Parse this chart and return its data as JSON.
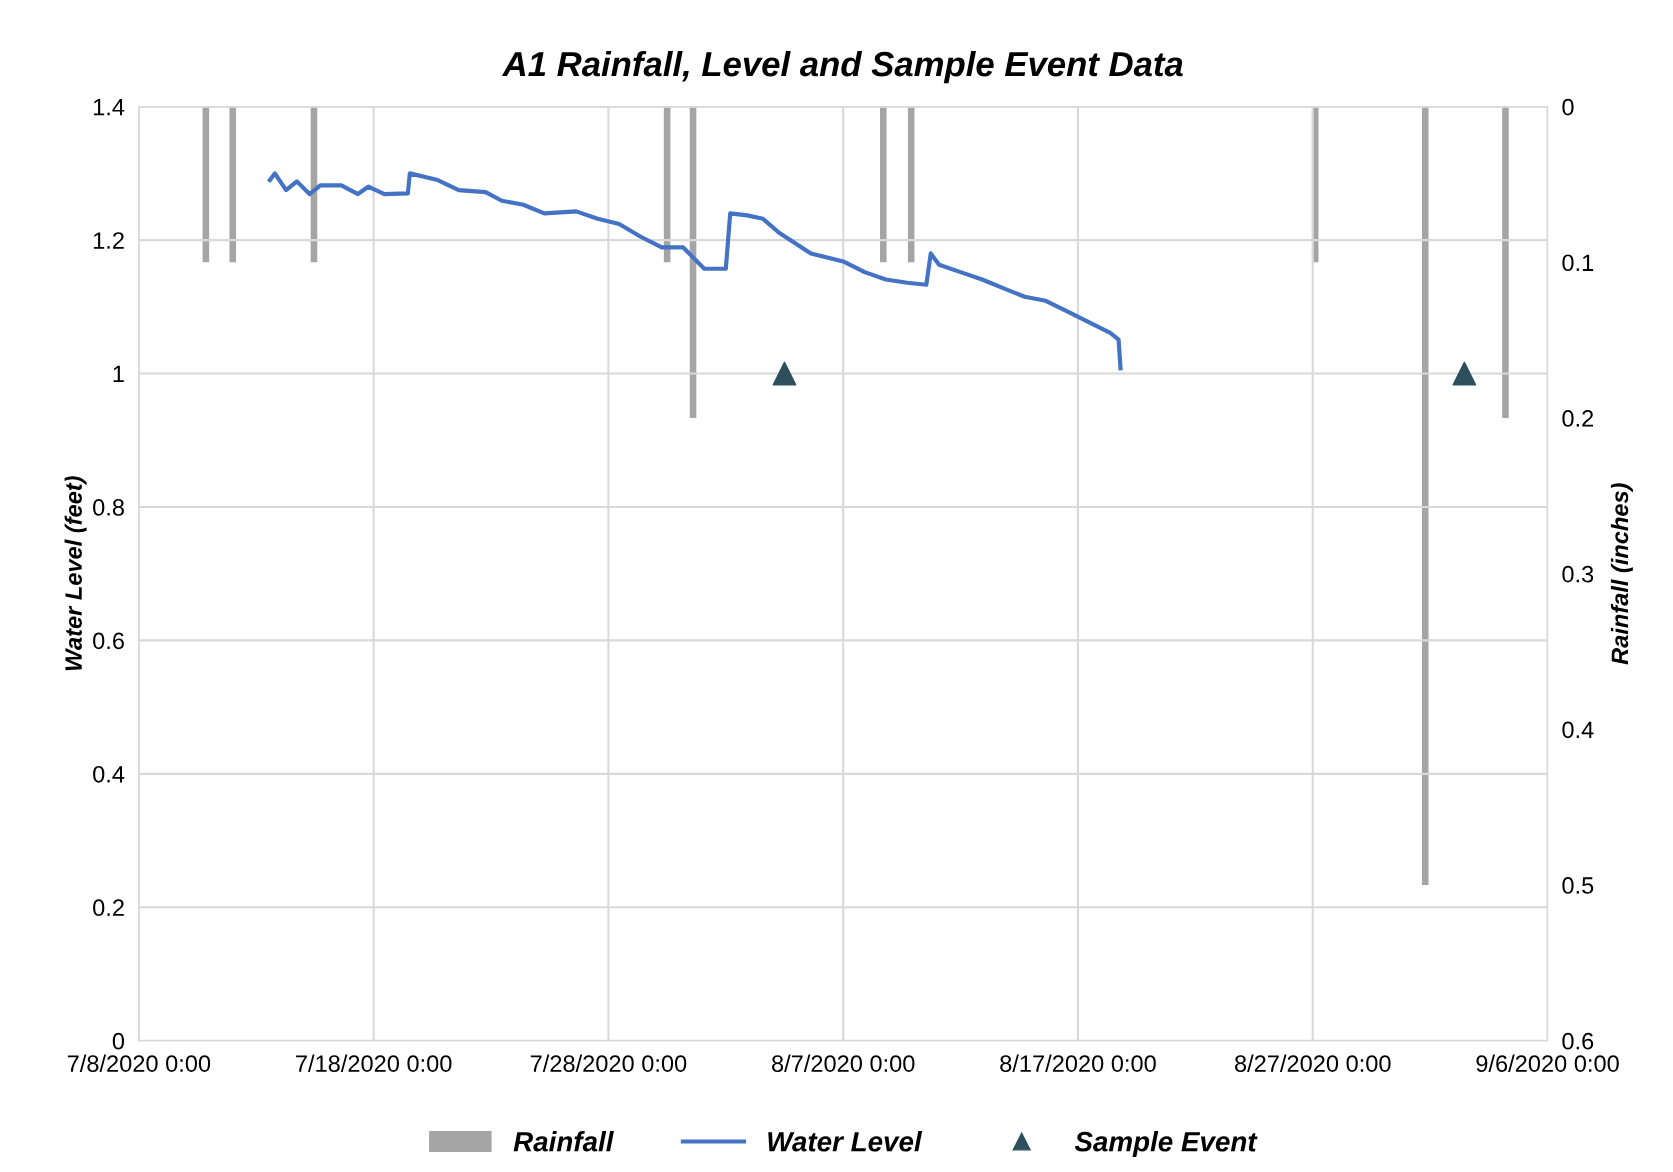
{
  "chart_data": {
    "type": "line",
    "title": "A1 Rainfall, Level and Sample Event Data",
    "ylabel": "Water Level (feet)",
    "y2label": "Rainfall (inches)",
    "xlim": [
      "2020-07-08",
      "2020-09-06"
    ],
    "xticks": [
      {
        "value": "2020-07-08",
        "label": "7/8/2020 0:00"
      },
      {
        "value": "2020-07-18",
        "label": "7/18/2020 0:00"
      },
      {
        "value": "2020-07-28",
        "label": "7/28/2020 0:00"
      },
      {
        "value": "2020-08-07",
        "label": "8/7/2020 0:00"
      },
      {
        "value": "2020-08-17",
        "label": "8/17/2020 0:00"
      },
      {
        "value": "2020-08-27",
        "label": "8/27/2020 0:00"
      },
      {
        "value": "2020-09-06",
        "label": "9/6/2020 0:00"
      }
    ],
    "ylim": [
      0,
      1.4
    ],
    "yticks": [
      0,
      0.2,
      0.4,
      0.6,
      0.8,
      1,
      1.2,
      1.4
    ],
    "y2lim": [
      0.6,
      0
    ],
    "y2ticks": [
      0,
      0.1,
      0.2,
      0.3,
      0.4,
      0.5,
      0.6
    ],
    "grid": true,
    "legend": "bottom",
    "series": [
      {
        "name": "Rainfall",
        "type": "bar",
        "axis": "y2",
        "color": "#a5a5a5",
        "x": [
          "2020-07-10T20:30",
          "2020-07-12T00:00",
          "2020-07-15T11:00",
          "2020-07-30T12:00",
          "2020-07-31T14:30",
          "2020-08-08T17:00",
          "2020-08-09T21:30",
          "2020-08-27T02:30",
          "2020-08-31T19:00",
          "2020-09-04T05:00"
        ],
        "values": [
          0.1,
          0.1,
          0.1,
          0.1,
          0.2,
          0.1,
          0.1,
          0.1,
          0.5,
          0.2
        ]
      },
      {
        "name": "Water Level",
        "color": "#4472c4",
        "marker": "none",
        "line_style": "solid",
        "x": [
          "2020-07-13T14:00",
          "2020-07-13T19:00",
          "2020-07-14T06:30",
          "2020-07-14T17:30",
          "2020-07-15T06:30",
          "2020-07-15T17:30",
          "2020-07-16T15:00",
          "2020-07-17T08:00",
          "2020-07-17T18:30",
          "2020-07-18T11:00",
          "2020-07-19T11:00",
          "2020-07-19T13:00",
          "2020-07-20T17:30",
          "2020-07-21T15:00",
          "2020-07-22T18:30",
          "2020-07-23T11:00",
          "2020-07-24T09:00",
          "2020-07-25T06:30",
          "2020-07-26T15:00",
          "2020-07-27T13:00",
          "2020-07-28T11:00",
          "2020-07-29T09:00",
          "2020-07-30T06:30",
          "2020-07-31T04:30",
          "2020-08-01T02:00",
          "2020-08-02T00:00",
          "2020-08-02T04:30",
          "2020-08-02T22:00",
          "2020-08-03T14:00",
          "2020-08-04T06:30",
          "2020-08-05T15:00",
          "2020-08-07T00:00",
          "2020-08-07T22:00",
          "2020-08-08T19:30",
          "2020-08-09T17:30",
          "2020-08-10T13:00",
          "2020-08-10T17:30",
          "2020-08-11T02:00",
          "2020-08-12T00:00",
          "2020-08-12T22:00",
          "2020-08-13T19:30",
          "2020-08-14T17:30",
          "2020-08-15T15:00",
          "2020-08-16T13:00",
          "2020-08-17T11:00",
          "2020-08-18T09:00",
          "2020-08-18T17:30",
          "2020-08-18T19:30"
        ],
        "values": [
          1.29,
          1.3,
          1.275,
          1.288,
          1.269,
          1.282,
          1.282,
          1.269,
          1.28,
          1.269,
          1.27,
          1.3,
          1.29,
          1.275,
          1.272,
          1.259,
          1.253,
          1.24,
          1.243,
          1.232,
          1.224,
          1.205,
          1.189,
          1.189,
          1.157,
          1.157,
          1.24,
          1.237,
          1.232,
          1.211,
          1.18,
          1.168,
          1.152,
          1.141,
          1.136,
          1.133,
          1.18,
          1.163,
          1.152,
          1.141,
          1.128,
          1.115,
          1.109,
          1.093,
          1.077,
          1.061,
          1.051,
          1.008
        ]
      },
      {
        "name": "Sample Event",
        "type": "scatter",
        "color": "#2e4f5e",
        "marker": "triangle",
        "x": [
          "2020-08-04T12:00",
          "2020-09-02T11:00"
        ],
        "values": [
          1,
          1
        ]
      }
    ]
  }
}
